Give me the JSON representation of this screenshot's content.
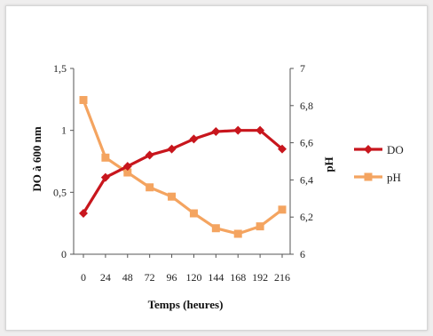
{
  "chart_data": {
    "type": "line",
    "title": "",
    "xlabel": "Temps (heures)",
    "ylabel_left": "DO à 600 nm",
    "ylabel_right": "pH",
    "x": [
      0,
      24,
      48,
      72,
      96,
      120,
      144,
      168,
      192,
      216
    ],
    "x_tick_labels": [
      "0",
      "24",
      "48",
      "72",
      "96",
      "120",
      "144",
      "168",
      "192",
      "216"
    ],
    "ylim_left": [
      0,
      1.5
    ],
    "y_left_ticks": [
      "0",
      "0,5",
      "1",
      "1,5"
    ],
    "ylim_right": [
      6,
      7
    ],
    "y_right_ticks": [
      "6",
      "6,2",
      "6,4",
      "6,6",
      "6,8",
      "7"
    ],
    "grid": false,
    "legend_position": "right",
    "series": [
      {
        "name": "DO",
        "axis": "left",
        "color": "#c8161d",
        "marker": "diamond",
        "values": [
          0.33,
          0.62,
          0.71,
          0.8,
          0.85,
          0.93,
          0.99,
          1.0,
          1.0,
          0.85
        ]
      },
      {
        "name": "pH",
        "axis": "right",
        "color": "#f4a460",
        "marker": "square",
        "values": [
          6.83,
          6.52,
          6.44,
          6.36,
          6.31,
          6.22,
          6.14,
          6.11,
          6.15,
          6.24
        ]
      }
    ]
  }
}
